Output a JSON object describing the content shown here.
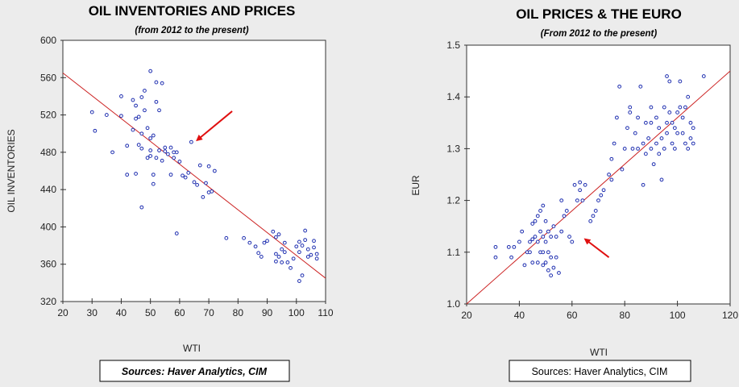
{
  "chart_data": [
    {
      "type": "scatter",
      "title": "OIL INVENTORIES AND PRICES",
      "subtitle": "(from 2012 to the present)",
      "xlabel": "WTI",
      "ylabel": "OIL INVENTORIES",
      "xlim": [
        20,
        110
      ],
      "ylim": [
        320,
        600
      ],
      "xticks": [
        20,
        30,
        40,
        50,
        60,
        70,
        80,
        90,
        100,
        110
      ],
      "yticks": [
        320,
        360,
        400,
        440,
        480,
        520,
        560,
        600
      ],
      "grid": false,
      "source": "Sources:  Haver Analytics, CIM",
      "point_color": "#1f2fb0",
      "line_color": "#cc2222",
      "arrow_color": "#e01010",
      "fit_line": [
        [
          20,
          565
        ],
        [
          110,
          345
        ]
      ],
      "arrow": {
        "from": [
          78,
          524
        ],
        "to": [
          66,
          493
        ]
      },
      "points": [
        [
          30,
          523
        ],
        [
          31,
          503
        ],
        [
          35,
          520
        ],
        [
          37,
          480
        ],
        [
          40,
          540
        ],
        [
          40,
          519
        ],
        [
          42,
          487
        ],
        [
          42,
          456
        ],
        [
          44,
          536
        ],
        [
          44,
          504
        ],
        [
          45,
          516
        ],
        [
          45,
          530
        ],
        [
          45,
          457
        ],
        [
          46,
          488
        ],
        [
          46,
          518
        ],
        [
          47,
          500
        ],
        [
          47,
          539
        ],
        [
          47,
          484
        ],
        [
          47,
          421
        ],
        [
          48,
          546
        ],
        [
          48,
          525
        ],
        [
          49,
          506
        ],
        [
          49,
          474
        ],
        [
          50,
          567
        ],
        [
          50,
          476
        ],
        [
          50,
          482
        ],
        [
          50,
          495
        ],
        [
          51,
          446
        ],
        [
          51,
          456
        ],
        [
          51,
          498
        ],
        [
          52,
          555
        ],
        [
          52,
          534
        ],
        [
          52,
          474
        ],
        [
          53,
          525
        ],
        [
          53,
          482
        ],
        [
          54,
          554
        ],
        [
          54,
          471
        ],
        [
          55,
          481
        ],
        [
          55,
          485
        ],
        [
          56,
          478
        ],
        [
          57,
          485
        ],
        [
          57,
          456
        ],
        [
          58,
          474
        ],
        [
          58,
          480
        ],
        [
          59,
          393
        ],
        [
          59,
          480
        ],
        [
          60,
          470
        ],
        [
          61,
          455
        ],
        [
          62,
          453
        ],
        [
          63,
          458
        ],
        [
          64,
          491
        ],
        [
          65,
          448
        ],
        [
          66,
          445
        ],
        [
          67,
          466
        ],
        [
          68,
          432
        ],
        [
          69,
          447
        ],
        [
          70,
          437
        ],
        [
          70,
          465
        ],
        [
          71,
          438
        ],
        [
          72,
          460
        ],
        [
          76,
          388
        ],
        [
          82,
          388
        ],
        [
          84,
          383
        ],
        [
          86,
          379
        ],
        [
          87,
          372
        ],
        [
          88,
          368
        ],
        [
          89,
          383
        ],
        [
          90,
          385
        ],
        [
          92,
          395
        ],
        [
          93,
          363
        ],
        [
          93,
          371
        ],
        [
          93,
          389
        ],
        [
          94,
          368
        ],
        [
          94,
          392
        ],
        [
          95,
          376
        ],
        [
          95,
          362
        ],
        [
          96,
          383
        ],
        [
          96,
          373
        ],
        [
          97,
          362
        ],
        [
          98,
          356
        ],
        [
          99,
          366
        ],
        [
          100,
          379
        ],
        [
          101,
          384
        ],
        [
          101,
          373
        ],
        [
          102,
          380
        ],
        [
          102,
          348
        ],
        [
          103,
          396
        ],
        [
          103,
          386
        ],
        [
          104,
          376
        ],
        [
          105,
          370
        ],
        [
          106,
          385
        ],
        [
          106,
          378
        ],
        [
          107,
          371
        ],
        [
          107,
          366
        ],
        [
          101,
          342
        ],
        [
          104,
          368
        ]
      ]
    },
    {
      "type": "scatter",
      "title": "OIL PRICES & THE EURO",
      "subtitle": "(From 2012 to the present)",
      "xlabel": "WTI",
      "ylabel": "EUR",
      "xlim": [
        20,
        120
      ],
      "ylim": [
        1.0,
        1.5
      ],
      "xticks": [
        20,
        40,
        60,
        80,
        100,
        120
      ],
      "yticks": [
        "1.0",
        "1.1",
        "1.2",
        "1.3",
        "1.4",
        "1.5"
      ],
      "grid": false,
      "source": "Sources:  Haver Analytics, CIM",
      "point_color": "#1f2fb0",
      "line_color": "#cc2222",
      "arrow_color": "#e01010",
      "fit_line": [
        [
          20,
          1.0
        ],
        [
          120,
          1.45
        ]
      ],
      "arrow": {
        "from": [
          74,
          1.09
        ],
        "to": [
          65,
          1.125
        ]
      },
      "points": [
        [
          31,
          1.11
        ],
        [
          31,
          1.09
        ],
        [
          36,
          1.11
        ],
        [
          37,
          1.09
        ],
        [
          38,
          1.11
        ],
        [
          40,
          1.12
        ],
        [
          41,
          1.14
        ],
        [
          42,
          1.075
        ],
        [
          43,
          1.1
        ],
        [
          44,
          1.12
        ],
        [
          44,
          1.1
        ],
        [
          45,
          1.155
        ],
        [
          45,
          1.125
        ],
        [
          45,
          1.08
        ],
        [
          46,
          1.16
        ],
        [
          46,
          1.13
        ],
        [
          47,
          1.17
        ],
        [
          47,
          1.12
        ],
        [
          47,
          1.08
        ],
        [
          48,
          1.18
        ],
        [
          48,
          1.14
        ],
        [
          48,
          1.1
        ],
        [
          49,
          1.19
        ],
        [
          49,
          1.13
        ],
        [
          49,
          1.1
        ],
        [
          49,
          1.075
        ],
        [
          50,
          1.16
        ],
        [
          50,
          1.12
        ],
        [
          50,
          1.08
        ],
        [
          51,
          1.14
        ],
        [
          51,
          1.1
        ],
        [
          51,
          1.065
        ],
        [
          52,
          1.13
        ],
        [
          52,
          1.09
        ],
        [
          52,
          1.055
        ],
        [
          53,
          1.15
        ],
        [
          53,
          1.07
        ],
        [
          54,
          1.13
        ],
        [
          54,
          1.09
        ],
        [
          55,
          1.06
        ],
        [
          56,
          1.14
        ],
        [
          56,
          1.2
        ],
        [
          57,
          1.17
        ],
        [
          58,
          1.18
        ],
        [
          59,
          1.13
        ],
        [
          60,
          1.12
        ],
        [
          61,
          1.23
        ],
        [
          62,
          1.2
        ],
        [
          63,
          1.235
        ],
        [
          63,
          1.22
        ],
        [
          64,
          1.2
        ],
        [
          65,
          1.23
        ],
        [
          67,
          1.16
        ],
        [
          68,
          1.17
        ],
        [
          69,
          1.18
        ],
        [
          70,
          1.2
        ],
        [
          71,
          1.21
        ],
        [
          72,
          1.22
        ],
        [
          74,
          1.25
        ],
        [
          75,
          1.24
        ],
        [
          75,
          1.28
        ],
        [
          76,
          1.31
        ],
        [
          77,
          1.36
        ],
        [
          78,
          1.42
        ],
        [
          79,
          1.26
        ],
        [
          80,
          1.3
        ],
        [
          81,
          1.34
        ],
        [
          82,
          1.38
        ],
        [
          83,
          1.3
        ],
        [
          84,
          1.33
        ],
        [
          85,
          1.36
        ],
        [
          86,
          1.42
        ],
        [
          87,
          1.31
        ],
        [
          87,
          1.23
        ],
        [
          88,
          1.35
        ],
        [
          88,
          1.29
        ],
        [
          89,
          1.32
        ],
        [
          90,
          1.38
        ],
        [
          90,
          1.3
        ],
        [
          91,
          1.27
        ],
        [
          92,
          1.36
        ],
        [
          92,
          1.31
        ],
        [
          93,
          1.34
        ],
        [
          93,
          1.29
        ],
        [
          94,
          1.32
        ],
        [
          94,
          1.24
        ],
        [
          95,
          1.38
        ],
        [
          95,
          1.3
        ],
        [
          96,
          1.44
        ],
        [
          96,
          1.33
        ],
        [
          97,
          1.43
        ],
        [
          97,
          1.37
        ],
        [
          98,
          1.35
        ],
        [
          98,
          1.31
        ],
        [
          99,
          1.3
        ],
        [
          100,
          1.37
        ],
        [
          100,
          1.33
        ],
        [
          101,
          1.43
        ],
        [
          101,
          1.38
        ],
        [
          102,
          1.36
        ],
        [
          102,
          1.33
        ],
        [
          103,
          1.38
        ],
        [
          103,
          1.31
        ],
        [
          104,
          1.3
        ],
        [
          105,
          1.35
        ],
        [
          105,
          1.32
        ],
        [
          106,
          1.34
        ],
        [
          106,
          1.31
        ],
        [
          110,
          1.44
        ],
        [
          82,
          1.37
        ],
        [
          85,
          1.3
        ],
        [
          90,
          1.35
        ],
        [
          96,
          1.35
        ],
        [
          99,
          1.34
        ],
        [
          104,
          1.4
        ]
      ]
    }
  ]
}
